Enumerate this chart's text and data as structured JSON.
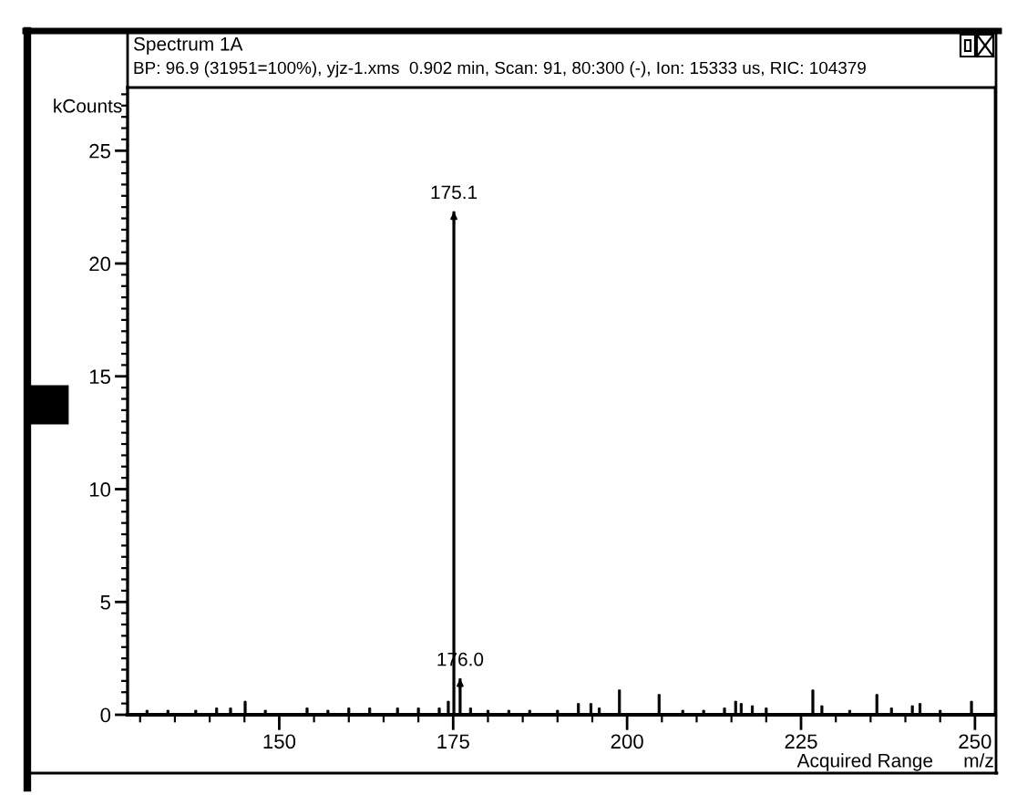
{
  "chart_data": {
    "type": "bar",
    "title": "Spectrum 1A",
    "subtitle": "BP: 96.9 (31951=100%), yjz-1.xms  0.902 min, Scan: 91, 80:300 (-), Ion: 15333 us, RIC: 104379",
    "xlabel": "m/z",
    "ylabel": "kCounts",
    "color": "#000000",
    "x": [
      131,
      134,
      138,
      141,
      143,
      145.1,
      148,
      154,
      157,
      160,
      163,
      167,
      170,
      173,
      174.3,
      175.1,
      176.0,
      177.5,
      180,
      183,
      186,
      190,
      193,
      194.8,
      196,
      198.9,
      204.6,
      208,
      211,
      214,
      215.6,
      216.4,
      218,
      220,
      226.7,
      228,
      232,
      235.9,
      238,
      241,
      242.1,
      245,
      249.5
    ],
    "values": [
      0.2,
      0.2,
      0.2,
      0.3,
      0.3,
      0.6,
      0.2,
      0.3,
      0.2,
      0.3,
      0.3,
      0.3,
      0.3,
      0.3,
      0.6,
      22.3,
      1.6,
      0.3,
      0.2,
      0.2,
      0.2,
      0.2,
      0.5,
      0.5,
      0.3,
      1.1,
      0.9,
      0.2,
      0.2,
      0.3,
      0.6,
      0.5,
      0.4,
      0.3,
      1.1,
      0.4,
      0.2,
      0.9,
      0.3,
      0.4,
      0.5,
      0.2,
      0.6
    ],
    "xlim": [
      128.2,
      252.9
    ],
    "ylim": [
      0,
      27.8
    ],
    "xticks": [
      {
        "value": 130,
        "label": null
      },
      {
        "value": 135,
        "label": null
      },
      {
        "value": 140,
        "label": null
      },
      {
        "value": 145,
        "label": null
      },
      150,
      {
        "value": 155,
        "label": null
      },
      {
        "value": 160,
        "label": null
      },
      {
        "value": 165,
        "label": null
      },
      {
        "value": 170,
        "label": null
      },
      175,
      {
        "value": 180,
        "label": null
      },
      {
        "value": 185,
        "label": null
      },
      {
        "value": 190,
        "label": null
      },
      {
        "value": 195,
        "label": null
      },
      200,
      {
        "value": 205,
        "label": null
      },
      {
        "value": 210,
        "label": null
      },
      {
        "value": 215,
        "label": null
      },
      {
        "value": 220,
        "label": null
      },
      225,
      {
        "value": 230,
        "label": null
      },
      {
        "value": 235,
        "label": null
      },
      {
        "value": 240,
        "label": null
      },
      {
        "value": 245,
        "label": null
      },
      250
    ],
    "yticks": [
      0,
      {
        "value": 0.5,
        "label": null
      },
      {
        "value": 1,
        "label": null
      },
      {
        "value": 1.5,
        "label": null
      },
      {
        "value": 2,
        "label": null
      },
      {
        "value": 2.5,
        "label": null
      },
      {
        "value": 3,
        "label": null
      },
      {
        "value": 3.5,
        "label": null
      },
      {
        "value": 4,
        "label": null
      },
      {
        "value": 4.5,
        "label": null
      },
      5,
      {
        "value": 5.5,
        "label": null
      },
      {
        "value": 6,
        "label": null
      },
      {
        "value": 6.5,
        "label": null
      },
      {
        "value": 7,
        "label": null
      },
      {
        "value": 7.5,
        "label": null
      },
      {
        "value": 8,
        "label": null
      },
      {
        "value": 8.5,
        "label": null
      },
      {
        "value": 9,
        "label": null
      },
      {
        "value": 9.5,
        "label": null
      },
      10,
      {
        "value": 10.5,
        "label": null
      },
      {
        "value": 11,
        "label": null
      },
      {
        "value": 11.5,
        "label": null
      },
      {
        "value": 12,
        "label": null
      },
      {
        "value": 12.5,
        "label": null
      },
      {
        "value": 13,
        "label": null
      },
      {
        "value": 13.5,
        "label": null
      },
      {
        "value": 14,
        "label": null
      },
      {
        "value": 14.5,
        "label": null
      },
      15,
      {
        "value": 15.5,
        "label": null
      },
      {
        "value": 16,
        "label": null
      },
      {
        "value": 16.5,
        "label": null
      },
      {
        "value": 17,
        "label": null
      },
      {
        "value": 17.5,
        "label": null
      },
      {
        "value": 18,
        "label": null
      },
      {
        "value": 18.5,
        "label": null
      },
      {
        "value": 19,
        "label": null
      },
      {
        "value": 19.5,
        "label": null
      },
      20,
      {
        "value": 20.5,
        "label": null
      },
      {
        "value": 21,
        "label": null
      },
      {
        "value": 21.5,
        "label": null
      },
      {
        "value": 22,
        "label": null
      },
      {
        "value": 22.5,
        "label": null
      },
      {
        "value": 23,
        "label": null
      },
      {
        "value": 23.5,
        "label": null
      },
      {
        "value": 24,
        "label": null
      },
      {
        "value": 24.5,
        "label": null
      },
      25,
      {
        "value": 25.5,
        "label": null
      },
      {
        "value": 26,
        "label": null
      },
      {
        "value": 26.5,
        "label": null
      },
      {
        "value": 27,
        "label": null
      },
      {
        "value": 27.5,
        "label": null
      }
    ],
    "annotations": [
      {
        "text": "175.1",
        "x": 175.1,
        "y": 22.3
      },
      {
        "text": "176.0",
        "x": 176.0,
        "y": 1.6
      },
      "Acquired Range"
    ]
  }
}
